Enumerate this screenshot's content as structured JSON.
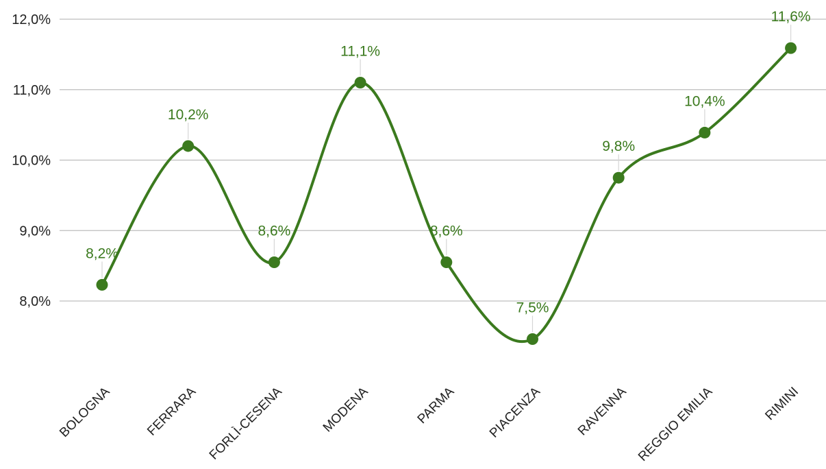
{
  "chart_data": {
    "type": "line",
    "title": "",
    "xlabel": "",
    "ylabel": "",
    "categories": [
      "BOLOGNA",
      "FERRARA",
      "FORLÌ-CESENA",
      "MODENA",
      "PARMA",
      "PIACENZA",
      "RAVENNA",
      "REGGIO EMILIA",
      "RIMINI"
    ],
    "series": [
      {
        "values": [
          8.23,
          10.2,
          8.55,
          11.1,
          8.55,
          7.46,
          9.75,
          10.39,
          11.59
        ],
        "data_labels": [
          "8,2%",
          "10,2%",
          "8,6%",
          "11,1%",
          "8,6%",
          "7,5%",
          "9,8%",
          "10,4%",
          "11,6%"
        ]
      }
    ],
    "yticks": [
      8.0,
      9.0,
      10.0,
      11.0,
      12.0
    ],
    "ytick_labels": [
      "8,0%",
      "9,0%",
      "10,0%",
      "11,0%",
      "12,0%"
    ],
    "ylim": [
      7.0,
      12.0
    ],
    "grid": true,
    "legend": "none",
    "smooth": true,
    "colors": {
      "series": "#3b7a1e",
      "grid": "#bdbdbd",
      "text": "#222222"
    }
  }
}
